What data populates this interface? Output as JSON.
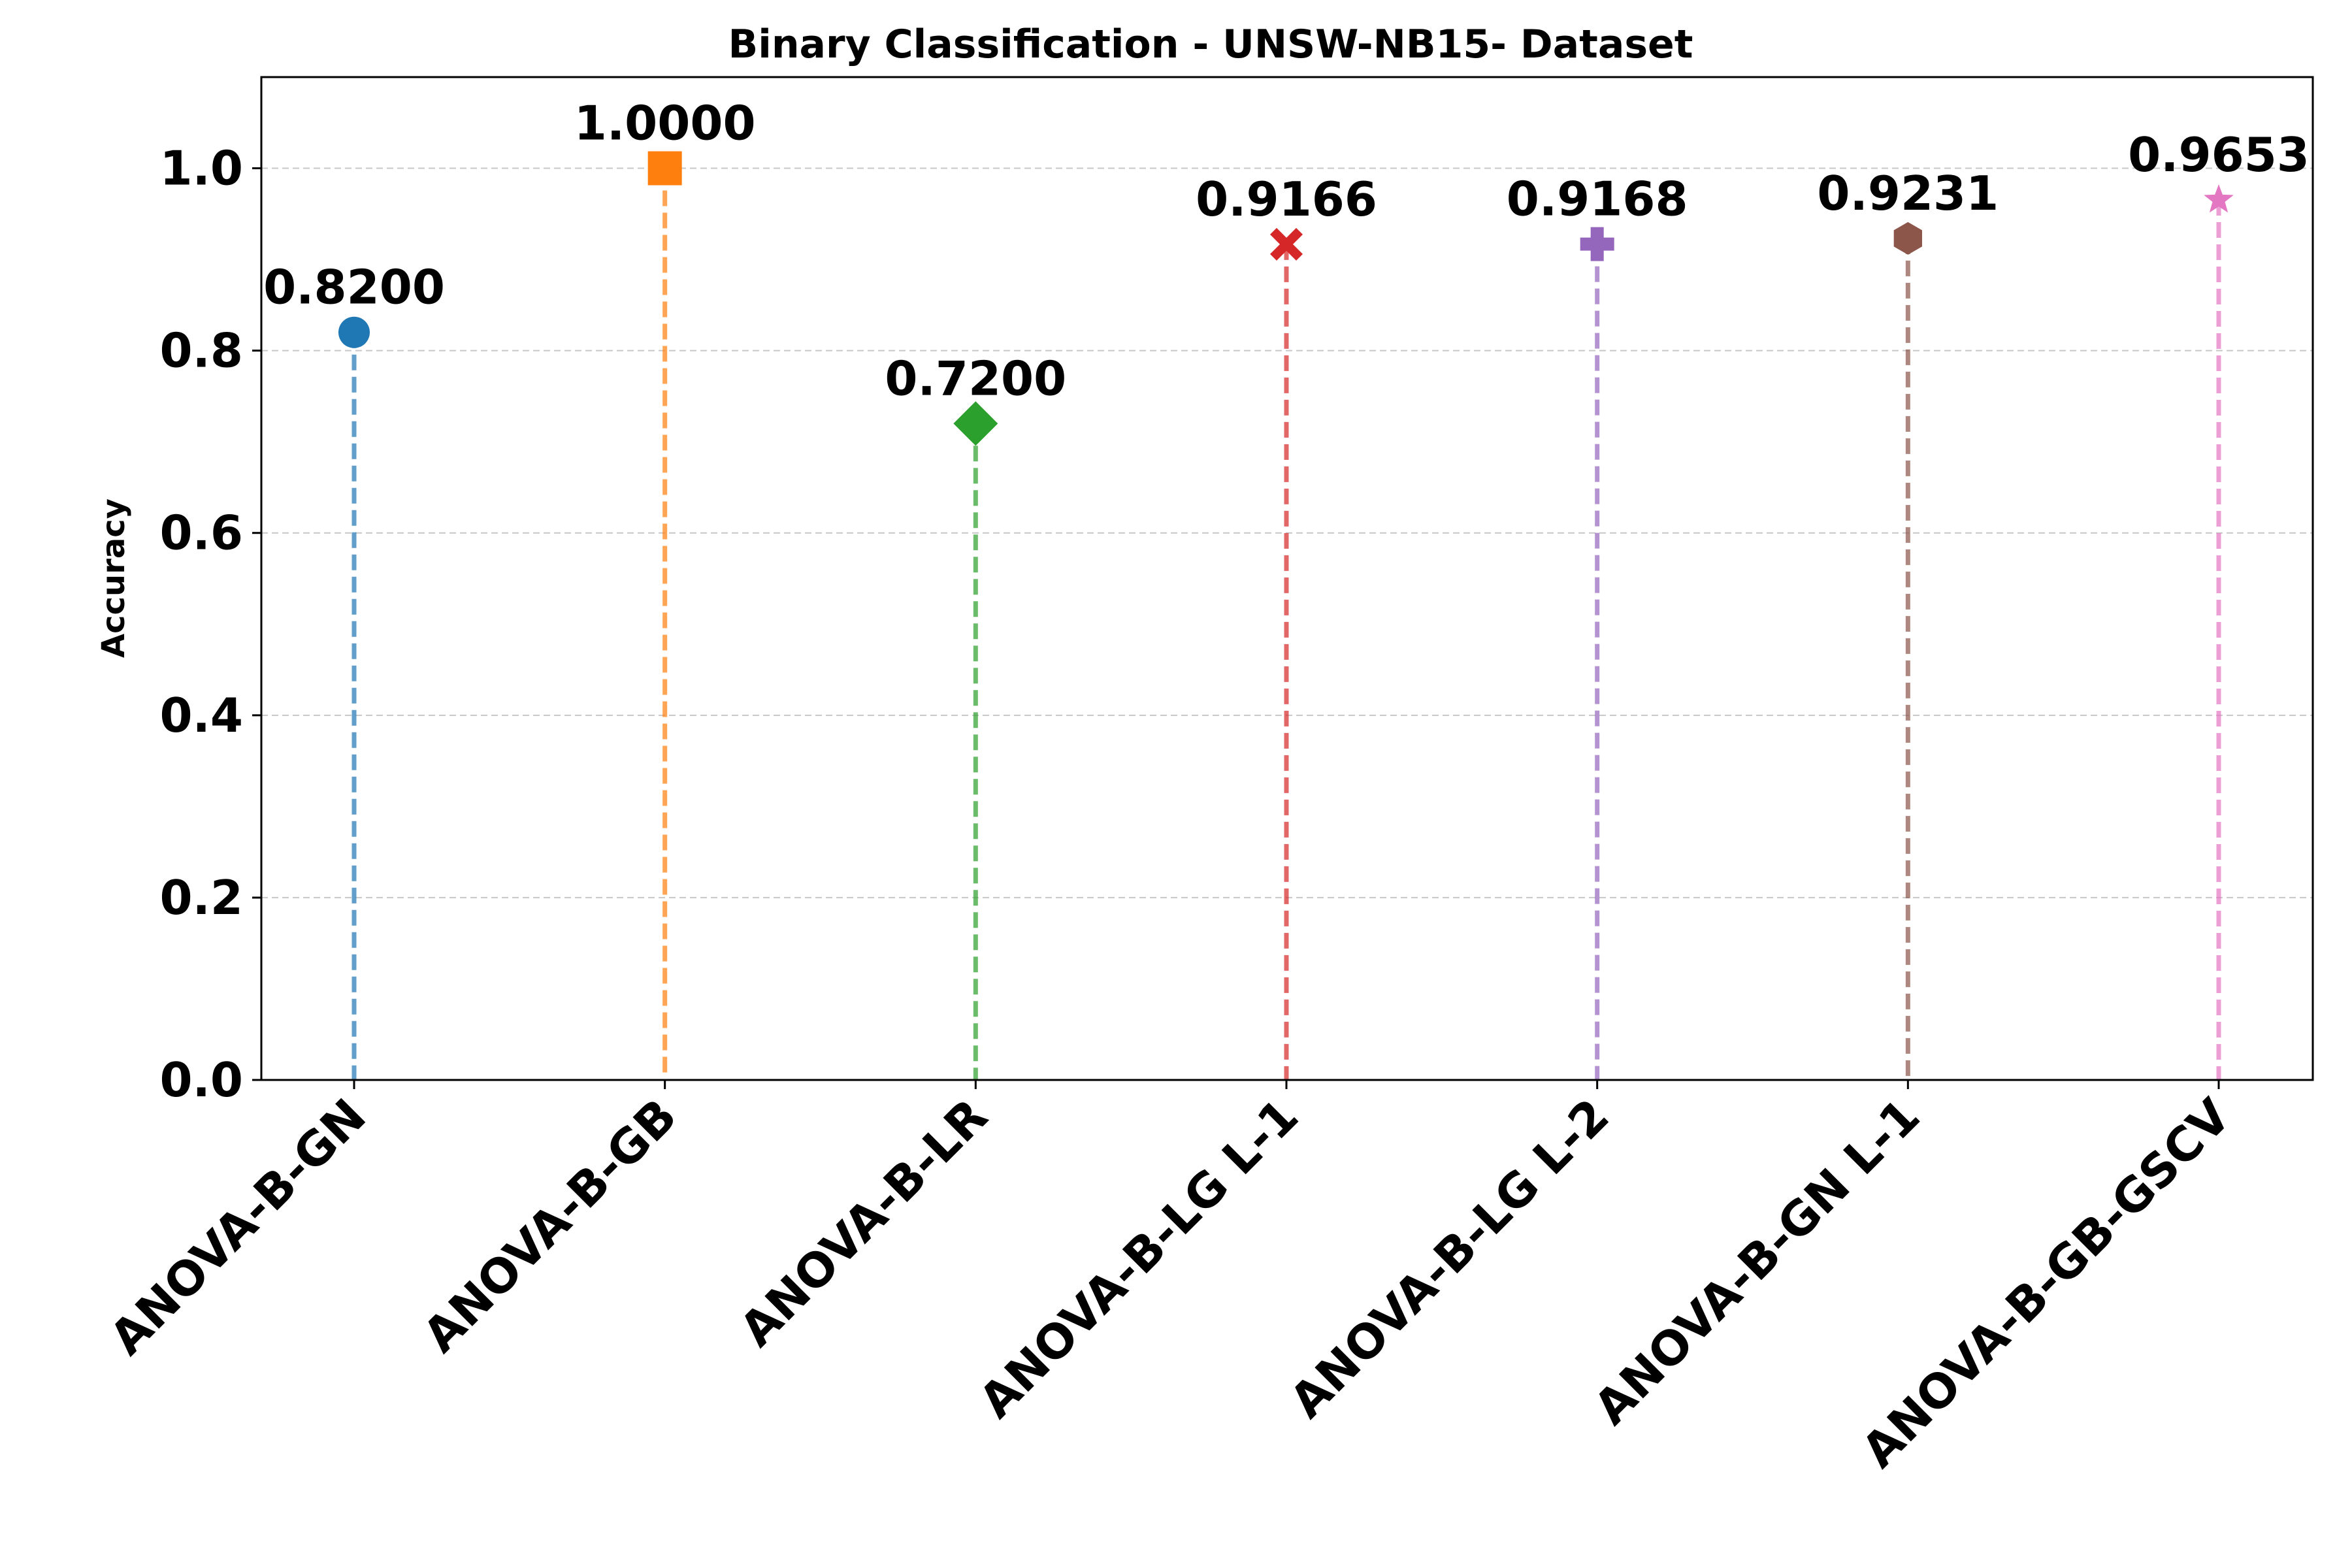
{
  "chart_data": {
    "type": "scatter",
    "title": "Binary Classification - UNSW-NB15- Dataset",
    "xlabel": "",
    "ylabel": "Accuracy",
    "ylim": [
      0,
      1.1
    ],
    "yticks": [
      "0.0",
      "0.2",
      "0.4",
      "0.6",
      "0.8",
      "1.0"
    ],
    "grid": "y, dashed",
    "categories": [
      "ANOVA-B-GN",
      "ANOVA-B-GB",
      "ANOVA-B-LR",
      "ANOVA-B-LG L-1",
      "ANOVA-B-LG L-2",
      "ANOVA-B-GN L-1",
      "ANOVA-B-GB-GSCV"
    ],
    "values": [
      0.82,
      1.0,
      0.72,
      0.9166,
      0.9168,
      0.9231,
      0.9653
    ],
    "value_labels": [
      "0.8200",
      "1.0000",
      "0.7200",
      "0.9166",
      "0.9168",
      "0.9231",
      "0.9653"
    ],
    "markers": [
      "circle",
      "square",
      "diamond",
      "x",
      "plus",
      "hexagon",
      "star"
    ],
    "colors": [
      "#1f77b4",
      "#ff7f0e",
      "#2ca02c",
      "#d62728",
      "#9467bd",
      "#8c564b",
      "#e377c2"
    ]
  }
}
